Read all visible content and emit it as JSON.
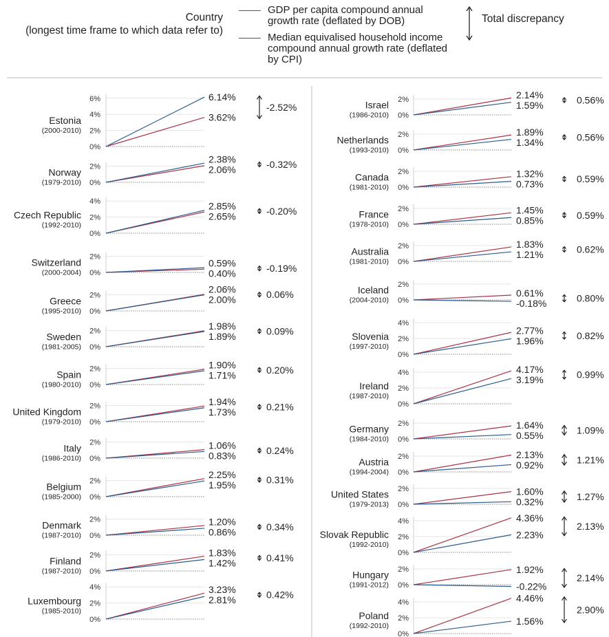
{
  "header": {
    "country_title": "Country",
    "country_subtitle": "(longest time frame to which data refer to)"
  },
  "legend": {
    "gdp": "GDP per capita compound annual growth rate (deflated by DOB)",
    "income": "Median equivalised household income compound annual growth rate (deflated by CPI)",
    "discrepancy": "Total discrepancy"
  },
  "colors": {
    "gdp": "#a83246",
    "income": "#2b5a8c"
  },
  "chart_data": {
    "type": "line",
    "series": [
      {
        "name": "GDP per capita compound annual growth rate (deflated by DOB)"
      },
      {
        "name": "Median equivalised household income compound annual growth rate (deflated by CPI)"
      }
    ],
    "left_panel": [
      {
        "country": "Estonia",
        "period": "(2000-2010)",
        "gdp": 3.62,
        "gdp_label": "3.62%",
        "income": 6.14,
        "income_label": "6.14%",
        "discrepancy": -2.52,
        "discrepancy_label": "-2.52%",
        "ticks": [
          "6%",
          "4%",
          "2%",
          "0%"
        ]
      },
      {
        "country": "Norway",
        "period": "(1979-2010)",
        "gdp": 2.06,
        "gdp_label": "2.06%",
        "income": 2.38,
        "income_label": "2.38%",
        "discrepancy": -0.32,
        "discrepancy_label": "-0.32%",
        "ticks": [
          "2%",
          "0%"
        ]
      },
      {
        "country": "Czech Republic",
        "period": "(1992-2010)",
        "gdp": 2.65,
        "gdp_label": "2.65%",
        "income": 2.85,
        "income_label": "2.85%",
        "discrepancy": -0.2,
        "discrepancy_label": "-0.20%",
        "ticks": [
          "4%",
          "2%",
          "0%"
        ]
      },
      {
        "country": "Switzerland",
        "period": "(2000-2004)",
        "gdp": 0.4,
        "gdp_label": "0.40%",
        "income": 0.59,
        "income_label": "0.59%",
        "discrepancy": -0.19,
        "discrepancy_label": "-0.19%",
        "ticks": [
          "2%",
          "0%"
        ]
      },
      {
        "country": "Greece",
        "period": "(1995-2010)",
        "gdp": 2.06,
        "gdp_label": "2.06%",
        "income": 2.0,
        "income_label": "2.00%",
        "discrepancy": 0.06,
        "discrepancy_label": "0.06%",
        "ticks": [
          "2%",
          "0%"
        ]
      },
      {
        "country": "Sweden",
        "period": "(1981-2005)",
        "gdp": 1.98,
        "gdp_label": "1.98%",
        "income": 1.89,
        "income_label": "1.89%",
        "discrepancy": 0.09,
        "discrepancy_label": "0.09%",
        "ticks": [
          "2%",
          "0%"
        ]
      },
      {
        "country": "Spain",
        "period": "(1980-2010)",
        "gdp": 1.9,
        "gdp_label": "1.90%",
        "income": 1.71,
        "income_label": "1.71%",
        "discrepancy": 0.2,
        "discrepancy_label": "0.20%",
        "ticks": [
          "2%",
          "0%"
        ]
      },
      {
        "country": "United Kingdom",
        "period": "(1979-2010)",
        "gdp": 1.94,
        "gdp_label": "1.94%",
        "income": 1.73,
        "income_label": "1.73%",
        "discrepancy": 0.21,
        "discrepancy_label": "0.21%",
        "ticks": [
          "2%",
          "0%"
        ]
      },
      {
        "country": "Italy",
        "period": "(1986-2010)",
        "gdp": 1.06,
        "gdp_label": "1.06%",
        "income": 0.83,
        "income_label": "0.83%",
        "discrepancy": 0.24,
        "discrepancy_label": "0.24%",
        "ticks": [
          "2%",
          "0%"
        ]
      },
      {
        "country": "Belgium",
        "period": "(1985-2000)",
        "gdp": 2.25,
        "gdp_label": "2.25%",
        "income": 1.95,
        "income_label": "1.95%",
        "discrepancy": 0.31,
        "discrepancy_label": "0.31%",
        "ticks": [
          "2%",
          "0%"
        ]
      },
      {
        "country": "Denmark",
        "period": "(1987-2010)",
        "gdp": 1.2,
        "gdp_label": "1.20%",
        "income": 0.86,
        "income_label": "0.86%",
        "discrepancy": 0.34,
        "discrepancy_label": "0.34%",
        "ticks": [
          "2%",
          "0%"
        ]
      },
      {
        "country": "Finland",
        "period": "(1987-2010)",
        "gdp": 1.83,
        "gdp_label": "1.83%",
        "income": 1.42,
        "income_label": "1.42%",
        "discrepancy": 0.41,
        "discrepancy_label": "0.41%",
        "ticks": [
          "2%",
          "0%"
        ]
      },
      {
        "country": "Luxembourg",
        "period": "(1985-2010)",
        "gdp": 3.23,
        "gdp_label": "3.23%",
        "income": 2.81,
        "income_label": "2.81%",
        "discrepancy": 0.42,
        "discrepancy_label": "0.42%",
        "ticks": [
          "4%",
          "2%",
          "0%"
        ]
      }
    ],
    "right_panel": [
      {
        "country": "Israel",
        "period": "(1986-2010)",
        "gdp": 2.14,
        "gdp_label": "2.14%",
        "income": 1.59,
        "income_label": "1.59%",
        "discrepancy": 0.56,
        "discrepancy_label": "0.56%",
        "ticks": [
          "2%",
          "0%"
        ]
      },
      {
        "country": "Netherlands",
        "period": "(1993-2010)",
        "gdp": 1.89,
        "gdp_label": "1.89%",
        "income": 1.34,
        "income_label": "1.34%",
        "discrepancy": 0.56,
        "discrepancy_label": "0.56%",
        "ticks": [
          "2%",
          "0%"
        ]
      },
      {
        "country": "Canada",
        "period": "(1981-2010)",
        "gdp": 1.32,
        "gdp_label": "1.32%",
        "income": 0.73,
        "income_label": "0.73%",
        "discrepancy": 0.59,
        "discrepancy_label": "0.59%",
        "ticks": [
          "2%",
          "0%"
        ]
      },
      {
        "country": "France",
        "period": "(1978-2010)",
        "gdp": 1.45,
        "gdp_label": "1.45%",
        "income": 0.85,
        "income_label": "0.85%",
        "discrepancy": 0.59,
        "discrepancy_label": "0.59%",
        "ticks": [
          "2%",
          "0%"
        ]
      },
      {
        "country": "Australia",
        "period": "(1981-2010)",
        "gdp": 1.83,
        "gdp_label": "1.83%",
        "income": 1.21,
        "income_label": "1.21%",
        "discrepancy": 0.62,
        "discrepancy_label": "0.62%",
        "ticks": [
          "2%",
          "0%"
        ]
      },
      {
        "country": "Iceland",
        "period": "(2004-2010)",
        "gdp": 0.61,
        "gdp_label": "0.61%",
        "income": -0.18,
        "income_label": "-0.18%",
        "discrepancy": 0.8,
        "discrepancy_label": "0.80%",
        "ticks": [
          "2%",
          "0%"
        ]
      },
      {
        "country": "Slovenia",
        "period": "(1997-2010)",
        "gdp": 2.77,
        "gdp_label": "2.77%",
        "income": 1.96,
        "income_label": "1.96%",
        "discrepancy": 0.82,
        "discrepancy_label": "0.82%",
        "ticks": [
          "4%",
          "2%",
          "0%"
        ]
      },
      {
        "country": "Ireland",
        "period": "(1987-2010)",
        "gdp": 4.17,
        "gdp_label": "4.17%",
        "income": 3.19,
        "income_label": "3.19%",
        "discrepancy": 0.99,
        "discrepancy_label": "0.99%",
        "ticks": [
          "4%",
          "2%",
          "0%"
        ]
      },
      {
        "country": "Germany",
        "period": "(1984-2010)",
        "gdp": 1.64,
        "gdp_label": "1.64%",
        "income": 0.55,
        "income_label": "0.55%",
        "discrepancy": 1.09,
        "discrepancy_label": "1.09%",
        "ticks": [
          "2%",
          "0%"
        ]
      },
      {
        "country": "Austria",
        "period": "(1994-2004)",
        "gdp": 2.13,
        "gdp_label": "2.13%",
        "income": 0.92,
        "income_label": "0.92%",
        "discrepancy": 1.21,
        "discrepancy_label": "1.21%",
        "ticks": [
          "2%",
          "0%"
        ]
      },
      {
        "country": "United States",
        "period": "(1979-2013)",
        "gdp": 1.6,
        "gdp_label": "1.60%",
        "income": 0.32,
        "income_label": "0.32%",
        "discrepancy": 1.27,
        "discrepancy_label": "1.27%",
        "ticks": [
          "2%",
          "0%"
        ]
      },
      {
        "country": "Slovak Republic",
        "period": "(1992-2010)",
        "gdp": 4.36,
        "gdp_label": "4.36%",
        "income": 2.23,
        "income_label": "2.23%",
        "discrepancy": 2.13,
        "discrepancy_label": "2.13%",
        "ticks": [
          "4%",
          "2%",
          "0%"
        ]
      },
      {
        "country": "Hungary",
        "period": "(1991-2012)",
        "gdp": 1.92,
        "gdp_label": "1.92%",
        "income": -0.22,
        "income_label": "-0.22%",
        "discrepancy": 2.14,
        "discrepancy_label": "2.14%",
        "ticks": [
          "2%",
          "0%"
        ]
      },
      {
        "country": "Poland",
        "period": "(1992-2010)",
        "gdp": 4.46,
        "gdp_label": "4.46%",
        "income": 1.56,
        "income_label": "1.56%",
        "discrepancy": 2.9,
        "discrepancy_label": "2.90%",
        "ticks": [
          "4%",
          "2%",
          "0%"
        ]
      }
    ]
  }
}
